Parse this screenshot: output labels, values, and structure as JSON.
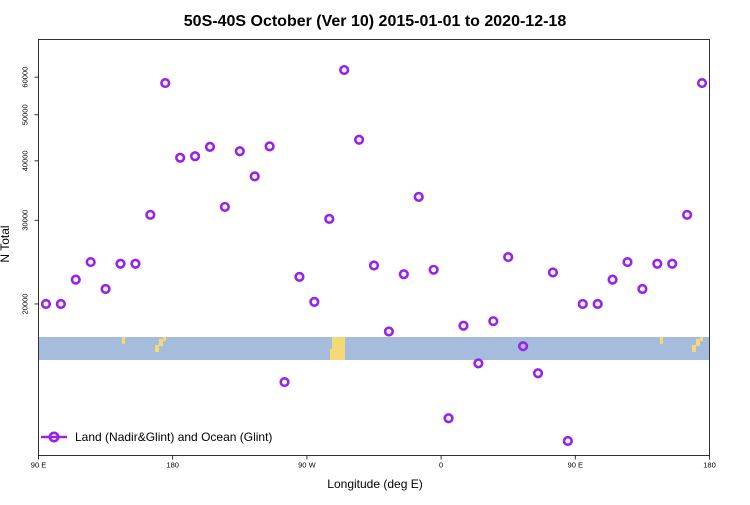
{
  "chart_data": {
    "type": "scatter",
    "title": "50S-40S October (Ver 10)   2015-01-01 to 2020-12-18",
    "xlabel": "Longitude (deg E)",
    "ylabel": "N Total",
    "x_tick_values": [
      90,
      180,
      270,
      360,
      450
    ],
    "x_tick_labels": [
      "90 E",
      "180",
      "90 W",
      "0",
      "90 E"
    ],
    "x_tick_label_180_right": "180",
    "xlim": [
      90,
      540
    ],
    "y_scale": "log",
    "ylim": [
      9600,
      72000
    ],
    "y_tick_values": [
      20000,
      30000,
      40000,
      50000,
      60000
    ],
    "y_tick_labels": [
      "20000",
      "30000",
      "40000",
      "50000",
      "60000"
    ],
    "colors": {
      "series": "#9a22e8",
      "ocean_band": "#a6bcdc",
      "land_band": "#f6d975"
    },
    "grid": false,
    "legend_position": "bottom-left",
    "series": [
      {
        "name": "Land (Nadir&Glint) and Ocean (Glint)",
        "x": [
          95,
          105,
          115,
          125,
          135,
          145,
          155,
          165,
          175,
          185,
          195,
          205,
          215,
          225,
          235,
          245,
          255,
          265,
          275,
          285,
          295,
          305,
          315,
          325,
          335,
          345,
          355,
          365,
          375,
          385,
          395,
          405,
          415,
          425,
          435,
          445,
          455,
          465,
          475,
          485,
          495,
          505,
          515,
          525,
          535
        ],
        "y": [
          20000,
          20000,
          22500,
          24500,
          21500,
          24300,
          24300,
          30800,
          58300,
          40600,
          40900,
          42800,
          32000,
          41900,
          37100,
          42900,
          13700,
          22800,
          20200,
          30200,
          62100,
          44300,
          24100,
          17500,
          23100,
          33600,
          23600,
          11500,
          18000,
          15000,
          18400,
          25100,
          16300,
          14300,
          23300,
          10300,
          20000,
          20000,
          22500,
          24500,
          21500,
          24300,
          24300,
          30800,
          58300
        ]
      }
    ]
  }
}
